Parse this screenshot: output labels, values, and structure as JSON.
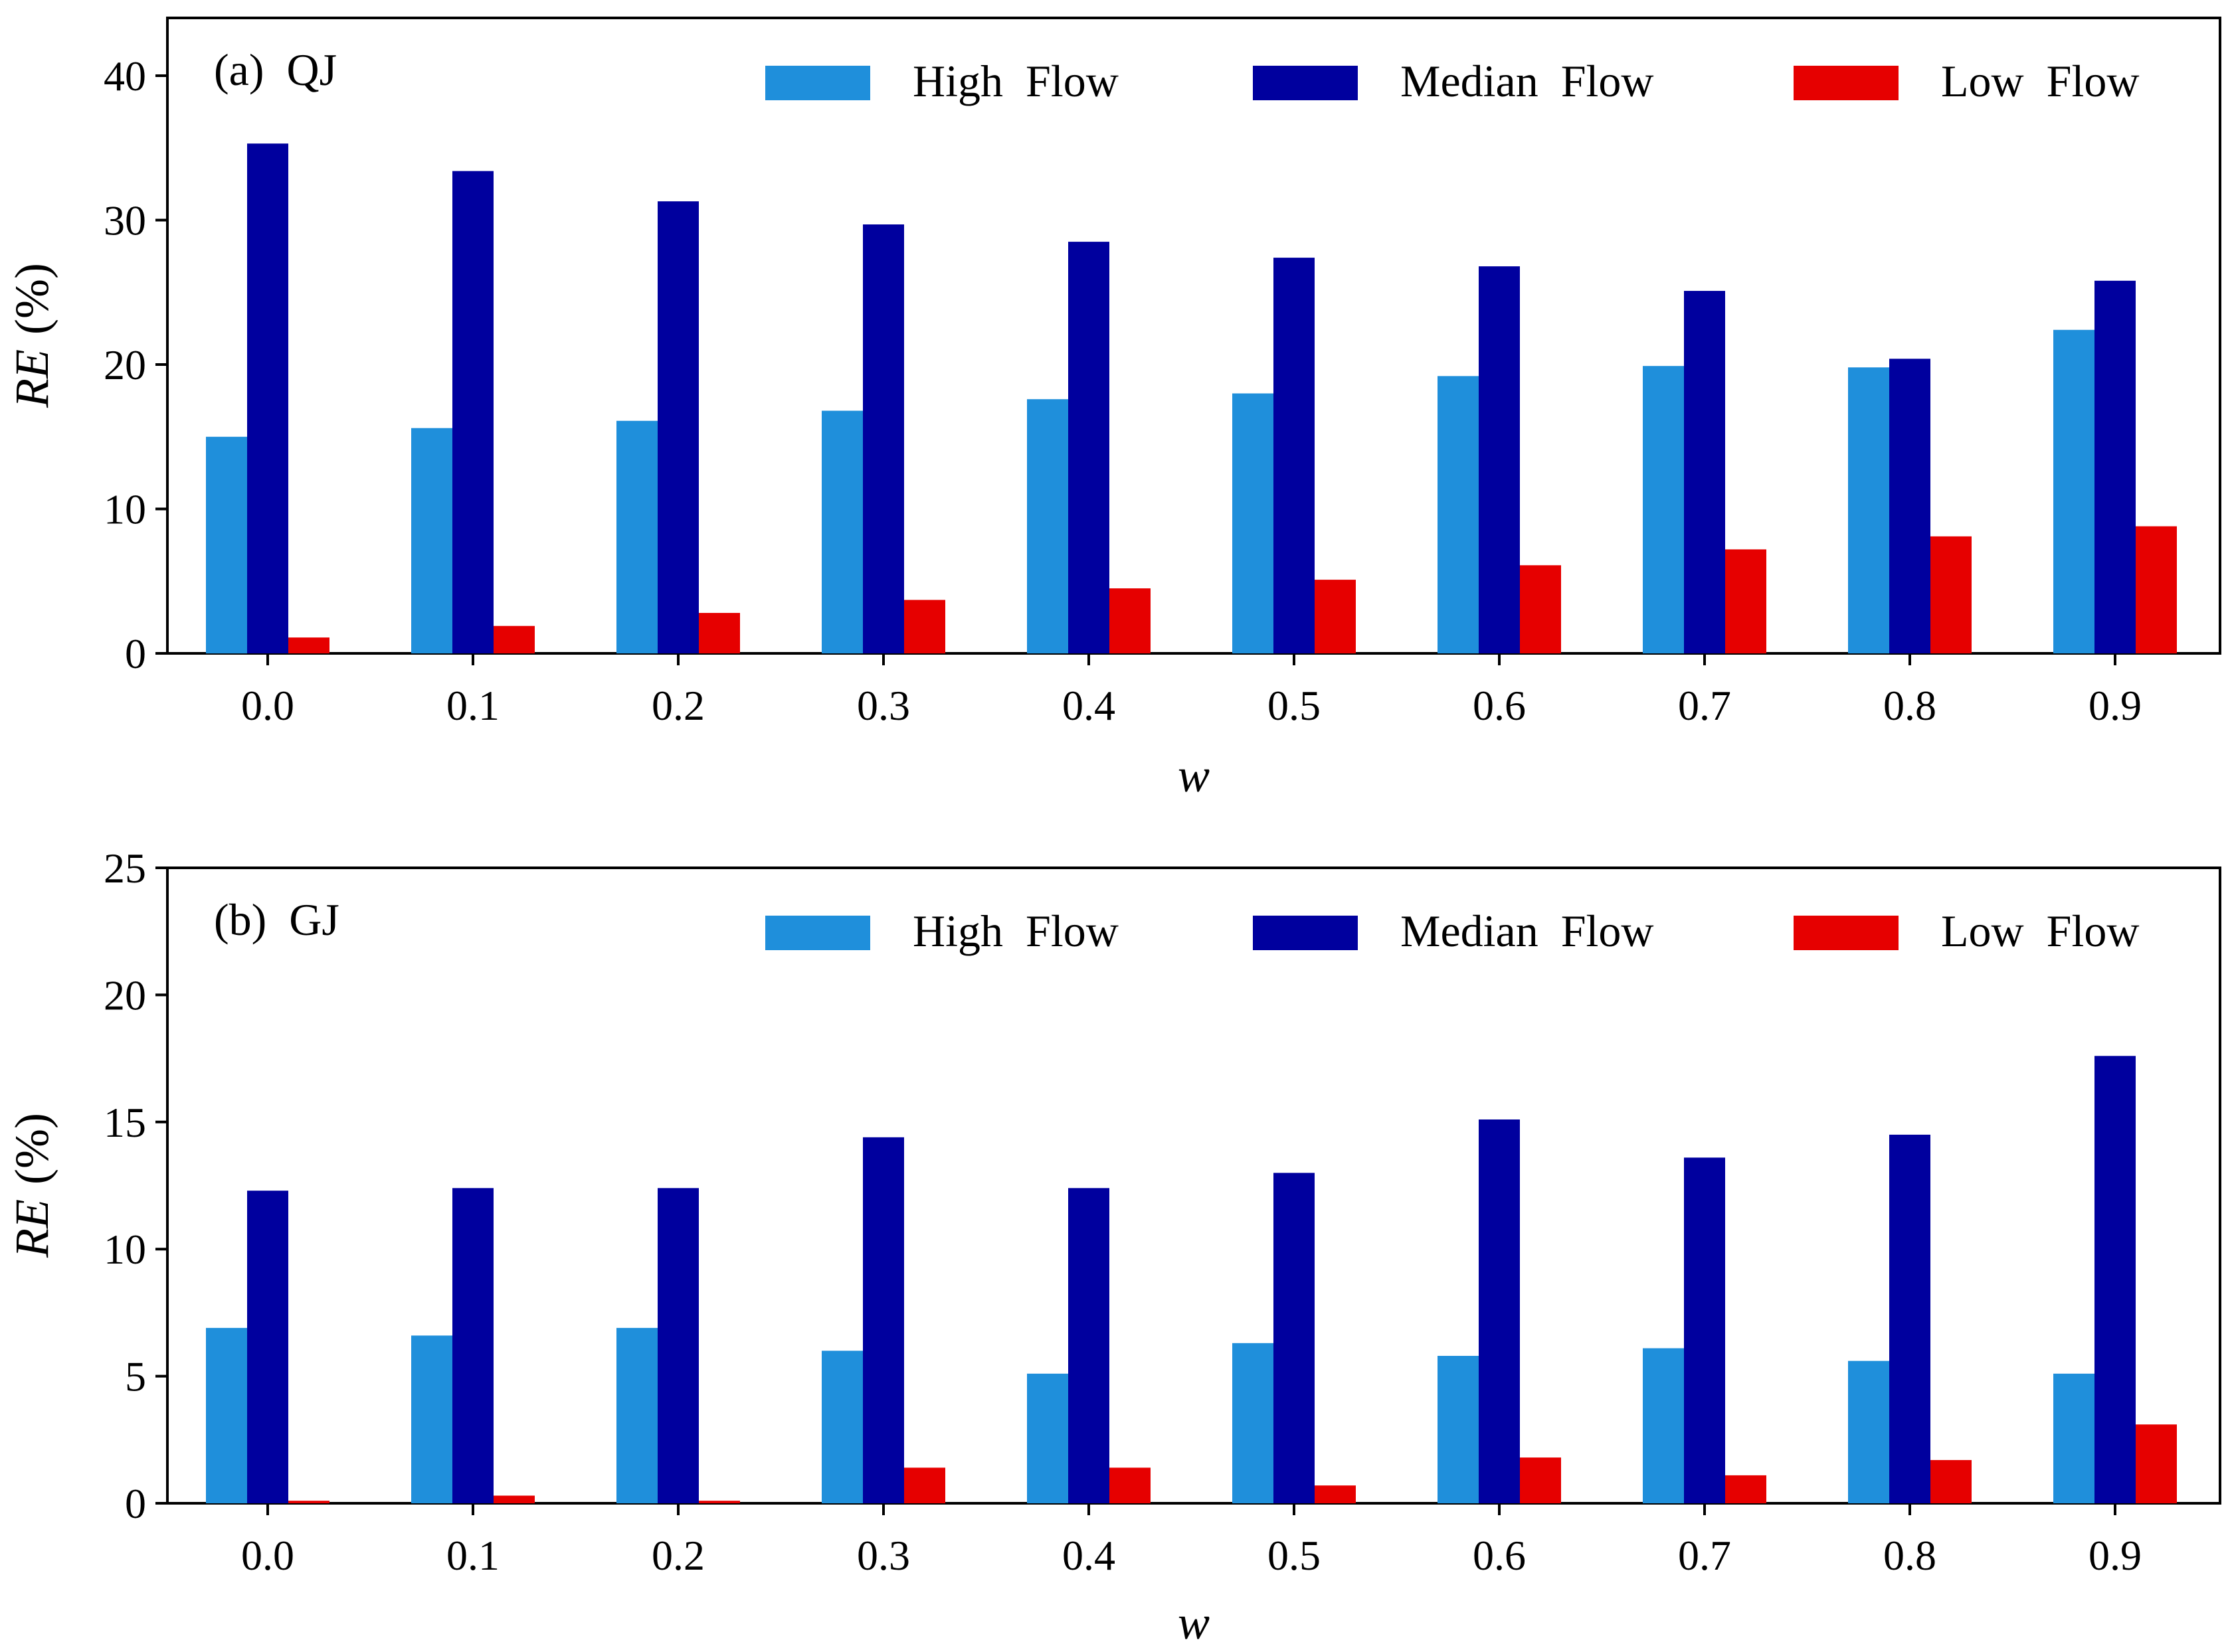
{
  "chart_data": [
    {
      "type": "bar",
      "panel_label": "(a)  QJ",
      "title": "",
      "xlabel": "w",
      "ylabel_main": "RE",
      "ylabel_unit": "(%)",
      "ylim": [
        0,
        44
      ],
      "yticks": [
        0,
        10,
        20,
        30,
        40
      ],
      "categories": [
        "0.0",
        "0.1",
        "0.2",
        "0.3",
        "0.4",
        "0.5",
        "0.6",
        "0.7",
        "0.8",
        "0.9"
      ],
      "legend_position": "top-right",
      "grid": false,
      "series": [
        {
          "name": "High  Flow",
          "color": "#1f8fdb",
          "values": [
            15.0,
            15.6,
            16.1,
            16.8,
            17.6,
            18.0,
            19.2,
            19.9,
            19.8,
            22.4
          ]
        },
        {
          "name": "Median  Flow",
          "color": "#00009e",
          "values": [
            35.3,
            33.4,
            31.3,
            29.7,
            28.5,
            27.4,
            26.8,
            25.1,
            20.4,
            25.8
          ]
        },
        {
          "name": "Low  Flow",
          "color": "#e60000",
          "values": [
            1.1,
            1.9,
            2.8,
            3.7,
            4.5,
            5.1,
            6.1,
            7.2,
            8.1,
            8.8
          ]
        }
      ]
    },
    {
      "type": "bar",
      "panel_label": "(b)  GJ",
      "title": "",
      "xlabel": "w",
      "ylabel_main": "RE",
      "ylabel_unit": "(%)",
      "ylim": [
        0,
        25
      ],
      "yticks": [
        0,
        5,
        10,
        15,
        20,
        25
      ],
      "categories": [
        "0.0",
        "0.1",
        "0.2",
        "0.3",
        "0.4",
        "0.5",
        "0.6",
        "0.7",
        "0.8",
        "0.9"
      ],
      "legend_position": "top-right",
      "grid": false,
      "series": [
        {
          "name": "High  Flow",
          "color": "#1f8fdb",
          "values": [
            6.9,
            6.6,
            6.9,
            6.0,
            5.1,
            6.3,
            5.8,
            6.1,
            5.6,
            5.1
          ]
        },
        {
          "name": "Median  Flow",
          "color": "#00009e",
          "values": [
            12.3,
            12.4,
            12.4,
            14.4,
            12.4,
            13.0,
            15.1,
            13.6,
            14.5,
            17.6
          ]
        },
        {
          "name": "Low  Flow",
          "color": "#e60000",
          "values": [
            0.1,
            0.3,
            0.1,
            1.4,
            1.4,
            0.7,
            1.8,
            1.1,
            1.7,
            3.1
          ]
        }
      ]
    }
  ]
}
